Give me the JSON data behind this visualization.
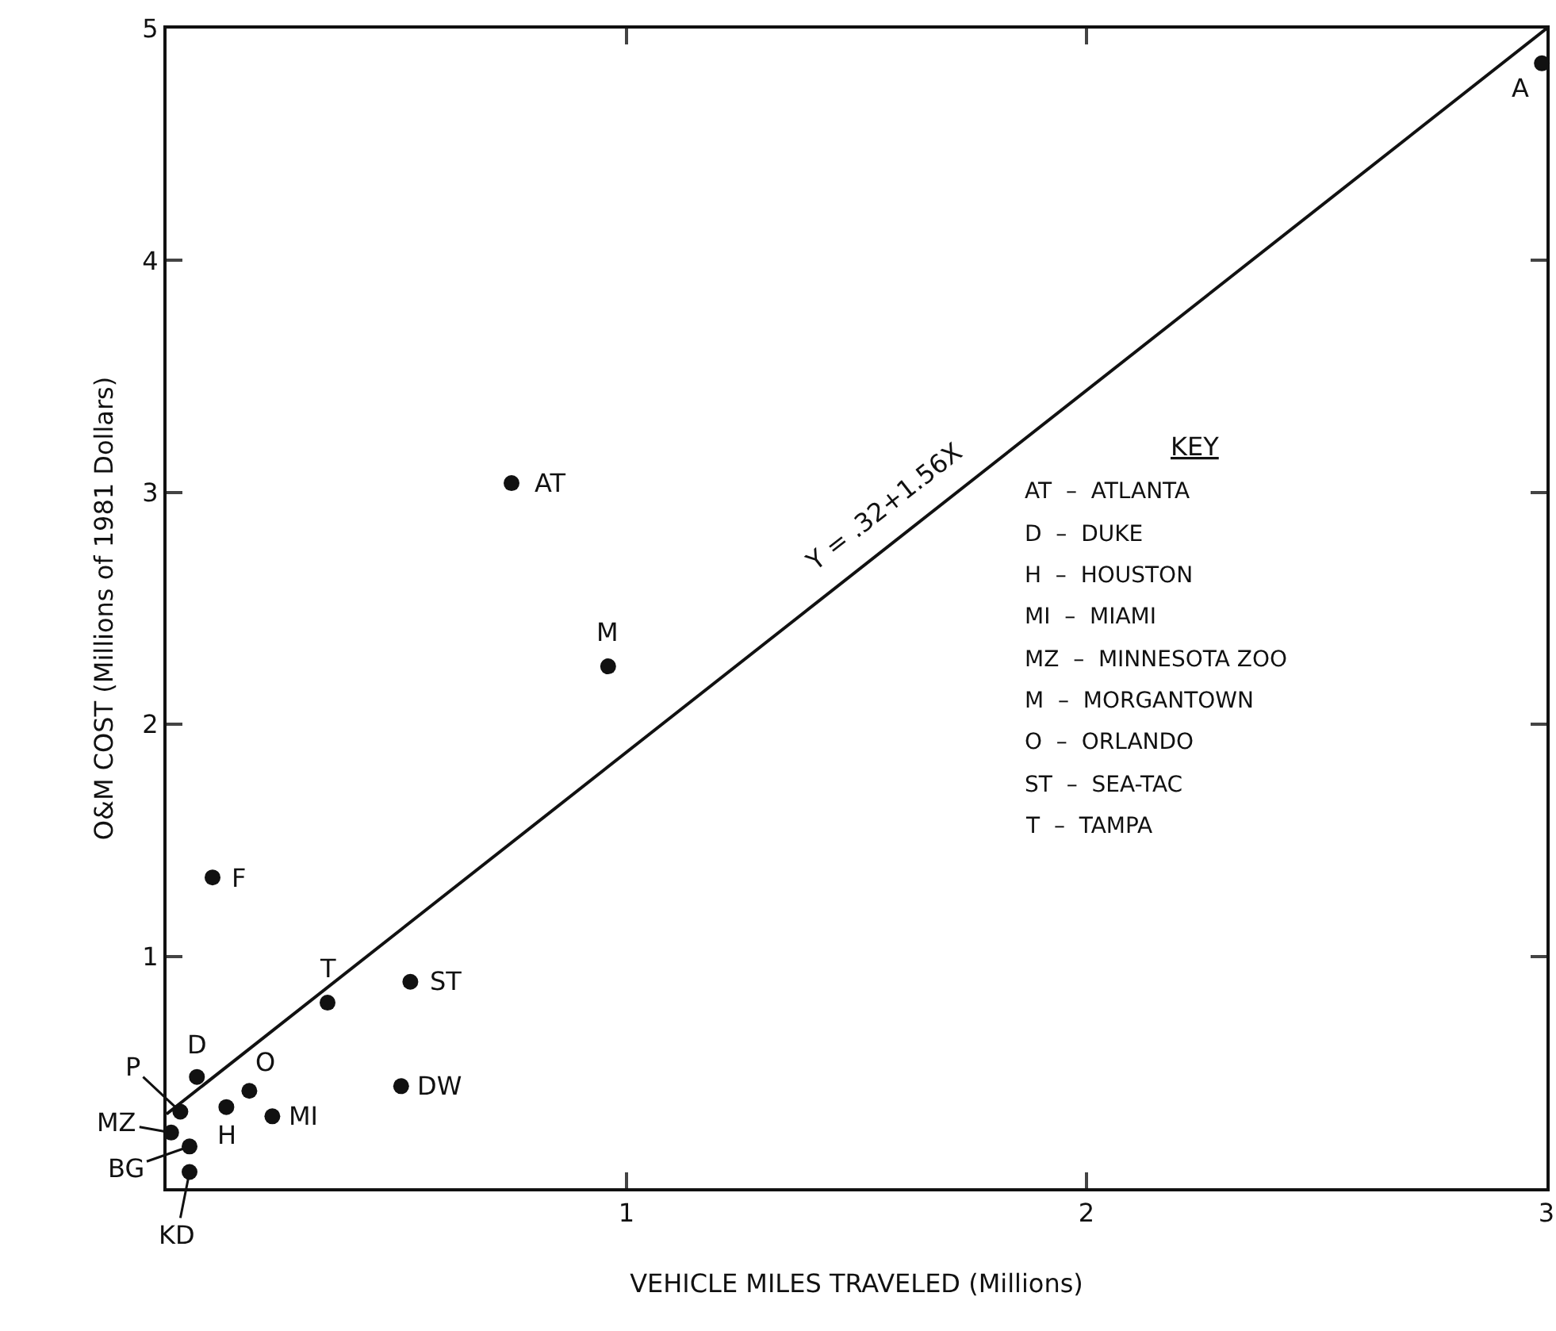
{
  "chart_data": {
    "type": "scatter",
    "xlabel": "VEHICLE MILES TRAVELED (Millions)",
    "ylabel": "O&M COST (Millions of 1981 Dollars)",
    "xlim": [
      0,
      3
    ],
    "ylim": [
      0,
      5
    ],
    "xticks": [
      {
        "value": 0,
        "label": null
      },
      1,
      2,
      3
    ],
    "yticks": [
      {
        "value": 0,
        "label": null
      },
      1,
      2,
      3,
      4,
      5
    ],
    "grid": false,
    "series": [
      {
        "marker": "circle",
        "color": "#111111",
        "x": [
          2.99,
          0.75,
          0.96,
          0.1,
          0.35,
          0.53,
          0.51,
          0.23,
          0.18,
          0.13,
          0.066,
          0.03,
          0.01,
          0.05,
          0.05
        ],
        "values": [
          4.85,
          3.04,
          2.25,
          1.34,
          0.8,
          0.89,
          0.44,
          0.31,
          0.42,
          0.35,
          0.48,
          0.33,
          0.24,
          0.18,
          0.07
        ]
      },
      {
        "type": "line",
        "marker": "none",
        "color": "#111111",
        "line_style": "solid",
        "x": [
          0,
          3
        ],
        "values": [
          0.32,
          5.0
        ]
      }
    ],
    "annotations": [
      {
        "text": "A",
        "x": 2.99,
        "y": 4.85
      },
      {
        "text": "AT",
        "x": 0.75,
        "y": 3.04
      },
      {
        "text": "M",
        "x": 0.96,
        "y": 2.25
      },
      {
        "text": "F",
        "x": 0.1,
        "y": 1.34
      },
      {
        "text": "T",
        "x": 0.35,
        "y": 0.8
      },
      {
        "text": "ST",
        "x": 0.53,
        "y": 0.89
      },
      {
        "text": "DW",
        "x": 0.51,
        "y": 0.44
      },
      {
        "text": "MI",
        "x": 0.23,
        "y": 0.31
      },
      {
        "text": "O",
        "x": 0.18,
        "y": 0.42
      },
      {
        "text": "H",
        "x": 0.13,
        "y": 0.35
      },
      {
        "text": "D",
        "x": 0.066,
        "y": 0.48
      },
      {
        "text": "P",
        "x": 0.03,
        "y": 0.33
      },
      {
        "text": "MZ",
        "x": 0.01,
        "y": 0.24
      },
      {
        "text": "BG",
        "x": 0.05,
        "y": 0.18
      },
      {
        "text": "KD",
        "x": 0.05,
        "y": 0.07
      },
      {
        "text": "Y = .32+1.56X",
        "x": 1.6,
        "y": 2.816
      },
      "KEY",
      "AT  –  ATLANTA",
      "D  –  DUKE",
      "H  –  HOUSTON",
      "MI  –  MIAMI",
      "MZ  –  MINNESOTA ZOO",
      "M  –  MORGANTOWN",
      "O  –  ORLANDO",
      "ST  –  SEA-TAC",
      "T  –  TAMPA"
    ]
  }
}
